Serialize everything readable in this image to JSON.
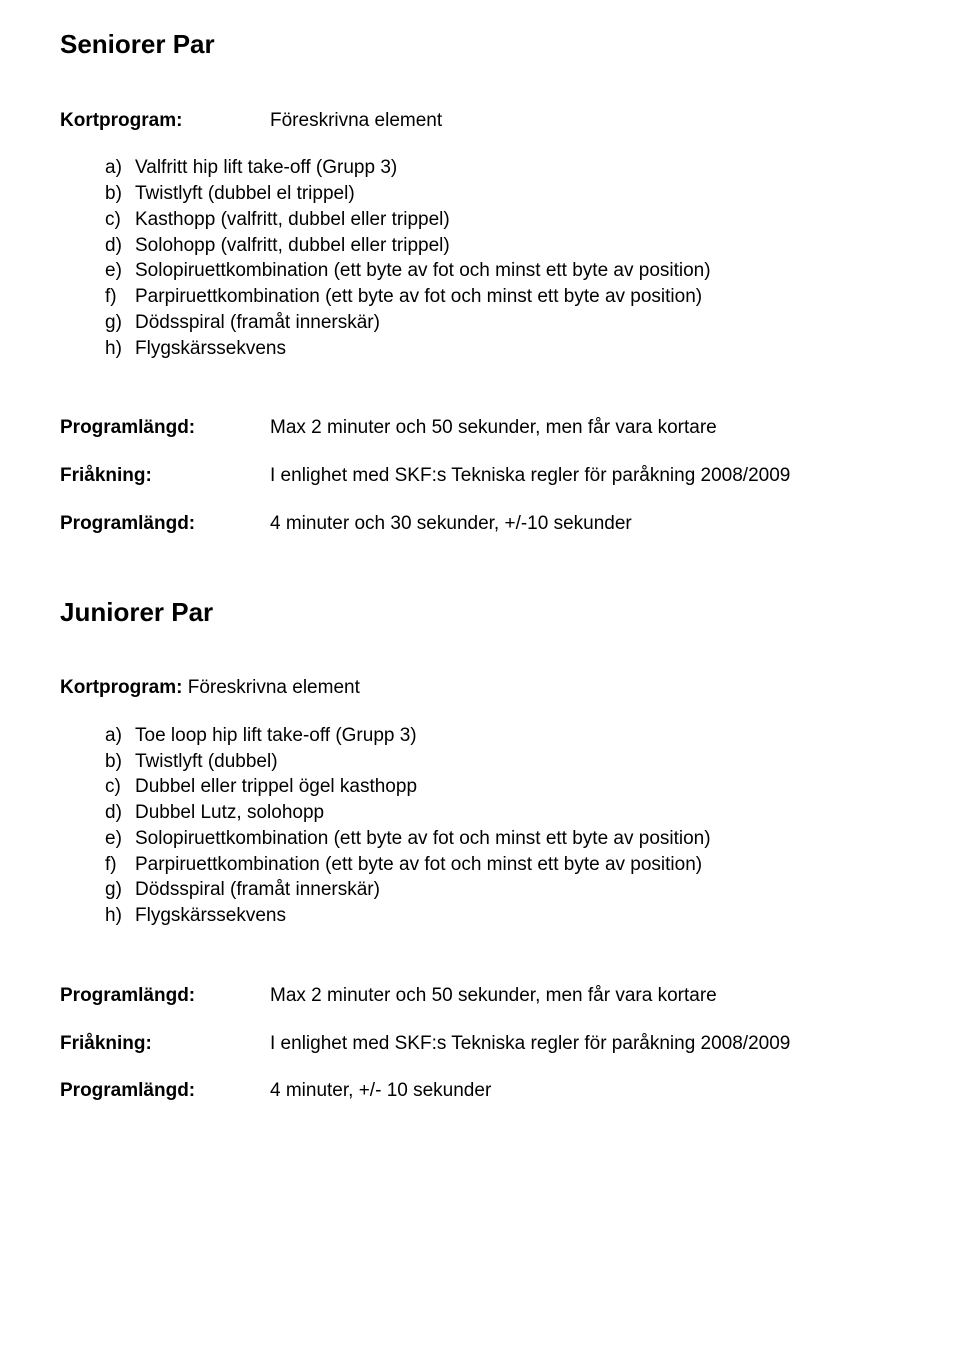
{
  "section1": {
    "title": "Seniorer Par",
    "kortprogram_label": "Kortprogram:",
    "kortprogram_value": "Föreskrivna element",
    "items": [
      {
        "m": "a)",
        "t": "Valfritt hip lift take-off (Grupp 3)"
      },
      {
        "m": "b)",
        "t": "Twistlyft (dubbel el trippel)"
      },
      {
        "m": "c)",
        "t": "Kasthopp (valfritt, dubbel eller trippel)"
      },
      {
        "m": "d)",
        "t": "Solohopp (valfritt, dubbel eller trippel)"
      },
      {
        "m": "e)",
        "t": "Solopiruettkombination (ett byte av fot och minst ett byte av position)"
      },
      {
        "m": "f)",
        "t": "Parpiruettkombination (ett byte av fot och minst ett byte av position)"
      },
      {
        "m": "g)",
        "t": "Dödsspiral (framåt innerskär)"
      },
      {
        "m": "h)",
        "t": "Flygskärssekvens"
      }
    ],
    "rows": [
      {
        "label": "Programlängd:",
        "value": "Max 2 minuter och 50 sekunder, men får vara kortare"
      },
      {
        "label": "Friåkning:",
        "value": "I enlighet med SKF:s Tekniska regler för paråkning 2008/2009"
      },
      {
        "label": "Programlängd:",
        "value": "4 minuter och 30 sekunder, +/-10 sekunder"
      }
    ]
  },
  "section2": {
    "title": "Juniorer Par",
    "kortprogram_line_bold": "Kortprogram: ",
    "kortprogram_line_rest": "Föreskrivna element",
    "items": [
      {
        "m": "a)",
        "t": "Toe loop hip lift take-off (Grupp 3)"
      },
      {
        "m": "b)",
        "t": "Twistlyft (dubbel)"
      },
      {
        "m": "c)",
        "t": "Dubbel eller trippel ögel kasthopp"
      },
      {
        "m": "d)",
        "t": "Dubbel Lutz, solohopp"
      },
      {
        "m": "e)",
        "t": "Solopiruettkombination (ett byte av fot och minst ett byte av position)"
      },
      {
        "m": "f)",
        "t": "Parpiruettkombination (ett byte av fot och minst ett byte av position)"
      },
      {
        "m": "g)",
        "t": "Dödsspiral (framåt innerskär)"
      },
      {
        "m": "h)",
        "t": "Flygskärssekvens"
      }
    ],
    "rows": [
      {
        "label": "Programlängd:",
        "value": "Max 2 minuter och 50 sekunder, men får vara kortare"
      },
      {
        "label": "Friåkning:",
        "value": "I enlighet med SKF:s Tekniska regler för paråkning 2008/2009"
      },
      {
        "label": "Programlängd:",
        "value": "4 minuter, +/- 10 sekunder"
      }
    ]
  }
}
